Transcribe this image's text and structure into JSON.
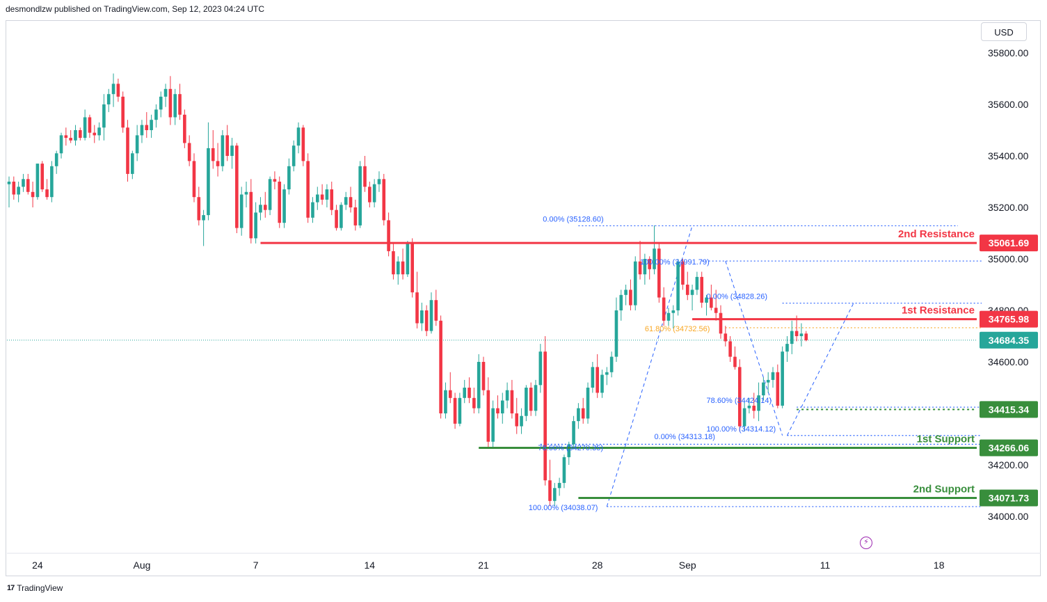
{
  "header": {
    "published_text": "desmondlzw published on TradingView.com, Sep 12, 2023 04:24 UTC"
  },
  "currency_label": "USD",
  "footer": {
    "brand": "TradingView"
  },
  "chart_data": {
    "type": "candlestick",
    "instrument_currency": "USD",
    "y_axis_ticks": [
      34000,
      34200,
      34400,
      34600,
      34800,
      35000,
      35200,
      35400,
      35600,
      35800
    ],
    "y_axis_tick_labels": [
      "34000.00",
      "34200.00",
      "34400.00",
      "34600.00",
      "34800.00",
      "35000.00",
      "35200.00",
      "35400.00",
      "35600.00",
      "35800.00"
    ],
    "ylim": [
      33940,
      35900
    ],
    "x_axis_labels": [
      "24",
      "Aug",
      "7",
      "14",
      "21",
      "28",
      "Sep",
      "11",
      "18"
    ],
    "x_axis_label_bar_index": [
      6,
      28,
      52,
      76,
      100,
      124,
      143,
      172,
      196
    ],
    "current_price": {
      "label": "34684.35",
      "value": 34684.35,
      "color": "#26a69a"
    },
    "levels": [
      {
        "name": "2nd Resistance",
        "label": "35061.69",
        "value": 35061.69,
        "color": "#f23645",
        "start_bar": 53
      },
      {
        "name": "1st Resistance",
        "label": "34765.98",
        "value": 34765.98,
        "color": "#f23645",
        "start_bar": 144
      },
      {
        "name": "1st Support",
        "label": "34266.06",
        "value": 34266.06,
        "color": "#388e3c",
        "start_bar": 99
      },
      {
        "name": "2nd Support",
        "label": "34071.73",
        "value": 34071.73,
        "color": "#388e3c",
        "start_bar": 120
      }
    ],
    "extra_price_labels": [
      {
        "label": "34415.34",
        "value": 34415.34,
        "color": "#388e3c"
      }
    ],
    "fib_labels": [
      {
        "text": "0.00% (35128.60)",
        "value": 35128.6,
        "color": "#2962ff"
      },
      {
        "text": "100.00% (34991.79)",
        "value": 34991.79,
        "color": "#2962ff"
      },
      {
        "text": "0.00% (34828.26)",
        "value": 34828.26,
        "color": "#2962ff"
      },
      {
        "text": "61.80% (34732.56)",
        "value": 34732.56,
        "color": "#f9a825"
      },
      {
        "text": "78.60% (34424.14)",
        "value": 34424.14,
        "color": "#2962ff"
      },
      {
        "text": "100.00% (34314.12)",
        "value": 34314.12,
        "color": "#2962ff"
      },
      {
        "text": "0.00% (34313.18)",
        "value": 34313.18,
        "color": "#2962ff"
      },
      {
        "text": "78.60% (34270.35)",
        "value": 34270.35,
        "color": "#2962ff"
      },
      {
        "text": "100.00% (34038.07)",
        "value": 34038.07,
        "color": "#2962ff"
      }
    ],
    "up_color": "#26a69a",
    "down_color": "#f23645",
    "candles": [
      [
        35290,
        35320,
        35200,
        35300
      ],
      [
        35300,
        35320,
        35230,
        35250
      ],
      [
        35250,
        35300,
        35220,
        35280
      ],
      [
        35280,
        35330,
        35260,
        35310
      ],
      [
        35310,
        35330,
        35250,
        35260
      ],
      [
        35260,
        35300,
        35200,
        35240
      ],
      [
        35240,
        35370,
        35230,
        35370
      ],
      [
        35370,
        35380,
        35260,
        35270
      ],
      [
        35270,
        35310,
        35230,
        35240
      ],
      [
        35240,
        35380,
        35220,
        35360
      ],
      [
        35360,
        35420,
        35330,
        35410
      ],
      [
        35410,
        35490,
        35390,
        35480
      ],
      [
        35480,
        35510,
        35440,
        35470
      ],
      [
        35470,
        35500,
        35450,
        35460
      ],
      [
        35460,
        35520,
        35440,
        35500
      ],
      [
        35500,
        35510,
        35460,
        35470
      ],
      [
        35470,
        35580,
        35460,
        35550
      ],
      [
        35550,
        35560,
        35470,
        35490
      ],
      [
        35490,
        35520,
        35450,
        35480
      ],
      [
        35480,
        35530,
        35460,
        35510
      ],
      [
        35510,
        35640,
        35460,
        35600
      ],
      [
        35600,
        35660,
        35570,
        35640
      ],
      [
        35640,
        35720,
        35590,
        35680
      ],
      [
        35680,
        35700,
        35610,
        35630
      ],
      [
        35630,
        35650,
        35490,
        35510
      ],
      [
        35510,
        35540,
        35300,
        35330
      ],
      [
        35330,
        35420,
        35310,
        35410
      ],
      [
        35410,
        35520,
        35380,
        35480
      ],
      [
        35480,
        35540,
        35450,
        35520
      ],
      [
        35520,
        35570,
        35470,
        35500
      ],
      [
        35500,
        35560,
        35470,
        35540
      ],
      [
        35540,
        35600,
        35510,
        35580
      ],
      [
        35580,
        35650,
        35550,
        35630
      ],
      [
        35630,
        35680,
        35590,
        35660
      ],
      [
        35660,
        35710,
        35520,
        35550
      ],
      [
        35550,
        35660,
        35520,
        35640
      ],
      [
        35640,
        35680,
        35540,
        35560
      ],
      [
        35560,
        35580,
        35430,
        35450
      ],
      [
        35450,
        35480,
        35360,
        35380
      ],
      [
        35380,
        35410,
        35220,
        35240
      ],
      [
        35240,
        35280,
        35130,
        35150
      ],
      [
        35150,
        35190,
        35050,
        35170
      ],
      [
        35170,
        35530,
        35150,
        35430
      ],
      [
        35430,
        35500,
        35350,
        35380
      ],
      [
        35380,
        35450,
        35320,
        35360
      ],
      [
        35360,
        35500,
        35340,
        35480
      ],
      [
        35480,
        35520,
        35380,
        35400
      ],
      [
        35400,
        35470,
        35350,
        35440
      ],
      [
        35440,
        35450,
        35100,
        35120
      ],
      [
        35120,
        35280,
        35090,
        35250
      ],
      [
        35250,
        35300,
        35200,
        35260
      ],
      [
        35260,
        35310,
        35060,
        35080
      ],
      [
        35080,
        35220,
        35060,
        35180
      ],
      [
        35180,
        35240,
        35150,
        35210
      ],
      [
        35210,
        35260,
        35160,
        35190
      ],
      [
        35190,
        35320,
        35170,
        35310
      ],
      [
        35310,
        35340,
        35270,
        35300
      ],
      [
        35300,
        35320,
        35120,
        35140
      ],
      [
        35140,
        35290,
        35120,
        35270
      ],
      [
        35270,
        35390,
        35250,
        35360
      ],
      [
        35360,
        35460,
        35340,
        35440
      ],
      [
        35440,
        35530,
        35410,
        35510
      ],
      [
        35510,
        35520,
        35360,
        35380
      ],
      [
        35380,
        35410,
        35140,
        35160
      ],
      [
        35160,
        35240,
        35140,
        35220
      ],
      [
        35220,
        35280,
        35190,
        35250
      ],
      [
        35250,
        35290,
        35210,
        35230
      ],
      [
        35230,
        35290,
        35200,
        35270
      ],
      [
        35270,
        35300,
        35170,
        35190
      ],
      [
        35190,
        35210,
        35110,
        35120
      ],
      [
        35120,
        35220,
        35110,
        35210
      ],
      [
        35210,
        35260,
        35190,
        35240
      ],
      [
        35240,
        35280,
        35180,
        35200
      ],
      [
        35200,
        35230,
        35110,
        35130
      ],
      [
        35130,
        35380,
        35120,
        35360
      ],
      [
        35360,
        35400,
        35260,
        35280
      ],
      [
        35280,
        35300,
        35200,
        35220
      ],
      [
        35220,
        35310,
        35200,
        35290
      ],
      [
        35290,
        35340,
        35260,
        35310
      ],
      [
        35310,
        35330,
        35130,
        35150
      ],
      [
        35150,
        35180,
        35010,
        35030
      ],
      [
        35030,
        35060,
        34920,
        34940
      ],
      [
        34940,
        35010,
        34900,
        34990
      ],
      [
        34990,
        35040,
        34920,
        34940
      ],
      [
        34940,
        35070,
        34930,
        35060
      ],
      [
        35060,
        35080,
        34850,
        34870
      ],
      [
        34870,
        34950,
        34730,
        34750
      ],
      [
        34750,
        34830,
        34720,
        34800
      ],
      [
        34800,
        34820,
        34700,
        34720
      ],
      [
        34720,
        34870,
        34710,
        34840
      ],
      [
        34840,
        34880,
        34740,
        34760
      ],
      [
        34760,
        34780,
        34380,
        34400
      ],
      [
        34400,
        34520,
        34380,
        34490
      ],
      [
        34490,
        34560,
        34440,
        34460
      ],
      [
        34460,
        34480,
        34340,
        34360
      ],
      [
        34360,
        34480,
        34350,
        34460
      ],
      [
        34460,
        34530,
        34440,
        34500
      ],
      [
        34500,
        34540,
        34440,
        34460
      ],
      [
        34460,
        34500,
        34400,
        34420
      ],
      [
        34420,
        34630,
        34400,
        34600
      ],
      [
        34600,
        34620,
        34470,
        34490
      ],
      [
        34490,
        34540,
        34270,
        34290
      ],
      [
        34290,
        34450,
        34270,
        34420
      ],
      [
        34420,
        34470,
        34380,
        34400
      ],
      [
        34400,
        34480,
        34360,
        34450
      ],
      [
        34450,
        34520,
        34420,
        34490
      ],
      [
        34490,
        34530,
        34380,
        34400
      ],
      [
        34400,
        34460,
        34320,
        34350
      ],
      [
        34350,
        34420,
        34320,
        34390
      ],
      [
        34390,
        34510,
        34370,
        34500
      ],
      [
        34500,
        34520,
        34390,
        34410
      ],
      [
        34410,
        34530,
        34390,
        34510
      ],
      [
        34510,
        34670,
        34480,
        34640
      ],
      [
        34640,
        34700,
        34120,
        34140
      ],
      [
        34140,
        34220,
        34040,
        34060
      ],
      [
        34060,
        34130,
        34040,
        34110
      ],
      [
        34110,
        34150,
        34080,
        34130
      ],
      [
        34130,
        34240,
        34110,
        34230
      ],
      [
        34230,
        34290,
        34200,
        34280
      ],
      [
        34280,
        34390,
        34260,
        34370
      ],
      [
        34370,
        34440,
        34340,
        34420
      ],
      [
        34420,
        34460,
        34360,
        34380
      ],
      [
        34380,
        34520,
        34360,
        34500
      ],
      [
        34500,
        34600,
        34480,
        34580
      ],
      [
        34580,
        34630,
        34460,
        34480
      ],
      [
        34480,
        34570,
        34460,
        34550
      ],
      [
        34550,
        34580,
        34510,
        34560
      ],
      [
        34560,
        34640,
        34540,
        34620
      ],
      [
        34620,
        34850,
        34600,
        34800
      ],
      [
        34800,
        34880,
        34760,
        34860
      ],
      [
        34860,
        34900,
        34820,
        34880
      ],
      [
        34880,
        34920,
        34800,
        34820
      ],
      [
        34820,
        35010,
        34800,
        34990
      ],
      [
        34990,
        35070,
        34920,
        34940
      ],
      [
        34940,
        35020,
        34900,
        35000
      ],
      [
        35000,
        35010,
        34920,
        34960
      ],
      [
        34960,
        35130,
        34940,
        35040
      ],
      [
        35040,
        35060,
        34830,
        34850
      ],
      [
        34850,
        34890,
        34740,
        34760
      ],
      [
        34760,
        34810,
        34740,
        34790
      ],
      [
        34790,
        34820,
        34730,
        34800
      ],
      [
        34800,
        35000,
        34780,
        34990
      ],
      [
        34990,
        35000,
        34880,
        34900
      ],
      [
        34900,
        34950,
        34840,
        34860
      ],
      [
        34860,
        34900,
        34800,
        34880
      ],
      [
        34880,
        34950,
        34860,
        34930
      ],
      [
        34930,
        34950,
        34810,
        34830
      ],
      [
        34830,
        34860,
        34780,
        34850
      ],
      [
        34850,
        34900,
        34800,
        34810
      ],
      [
        34810,
        34880,
        34760,
        34790
      ],
      [
        34790,
        34820,
        34690,
        34710
      ],
      [
        34710,
        34740,
        34660,
        34680
      ],
      [
        34680,
        34700,
        34600,
        34620
      ],
      [
        34620,
        34660,
        34570,
        34580
      ],
      [
        34580,
        34610,
        34330,
        34350
      ],
      [
        34350,
        34450,
        34330,
        34420
      ],
      [
        34420,
        34460,
        34400,
        34430
      ],
      [
        34430,
        34480,
        34380,
        34410
      ],
      [
        34410,
        34520,
        34370,
        34470
      ],
      [
        34470,
        34540,
        34450,
        34520
      ],
      [
        34520,
        34560,
        34480,
        34530
      ],
      [
        34530,
        34580,
        34500,
        34560
      ],
      [
        34560,
        34590,
        34420,
        34430
      ],
      [
        34430,
        34660,
        34420,
        34640
      ],
      [
        34640,
        34700,
        34600,
        34670
      ],
      [
        34670,
        34760,
        34630,
        34720
      ],
      [
        34720,
        34780,
        34680,
        34700
      ],
      [
        34700,
        34750,
        34660,
        34710
      ],
      [
        34710,
        34720,
        34680,
        34684
      ]
    ]
  }
}
